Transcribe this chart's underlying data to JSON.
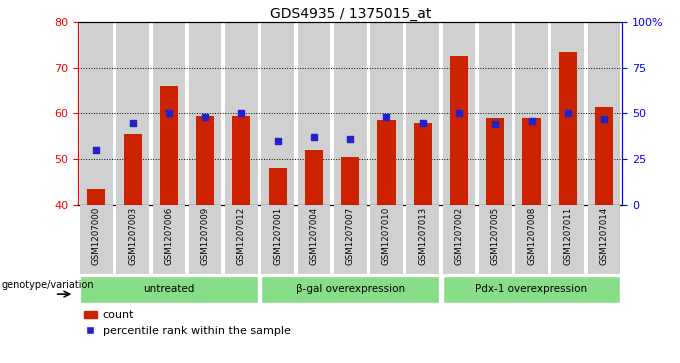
{
  "title": "GDS4935 / 1375015_at",
  "samples": [
    "GSM1207000",
    "GSM1207003",
    "GSM1207006",
    "GSM1207009",
    "GSM1207012",
    "GSM1207001",
    "GSM1207004",
    "GSM1207007",
    "GSM1207010",
    "GSM1207013",
    "GSM1207002",
    "GSM1207005",
    "GSM1207008",
    "GSM1207011",
    "GSM1207014"
  ],
  "counts": [
    43.5,
    55.5,
    66.0,
    59.5,
    59.5,
    48.0,
    52.0,
    50.5,
    58.5,
    58.0,
    72.5,
    59.0,
    59.0,
    73.5,
    61.5
  ],
  "percentile_ranks": [
    30,
    45,
    50,
    48,
    50,
    35,
    37,
    36,
    48,
    45,
    50,
    44,
    46,
    50,
    47
  ],
  "ylim_left": [
    40,
    80
  ],
  "ylim_right": [
    0,
    100
  ],
  "yticks_left": [
    40,
    50,
    60,
    70,
    80
  ],
  "yticks_right": [
    0,
    25,
    50,
    75,
    100
  ],
  "ytick_labels_right": [
    "0",
    "25",
    "50",
    "75",
    "100%"
  ],
  "gridlines": [
    50,
    60,
    70
  ],
  "bar_color": "#cc2200",
  "dot_color": "#2222cc",
  "col_bg_color": "#d0d0d0",
  "plot_bg": "#ffffff",
  "group_color": "#88dd88",
  "genotype_label": "genotype/variation",
  "group_labels": [
    "untreated",
    "β-gal overexpression",
    "Pdx-1 overexpression"
  ],
  "group_ranges": [
    [
      0,
      4
    ],
    [
      5,
      9
    ],
    [
      10,
      14
    ]
  ],
  "legend_count": "count",
  "legend_pct": "percentile rank within the sample"
}
